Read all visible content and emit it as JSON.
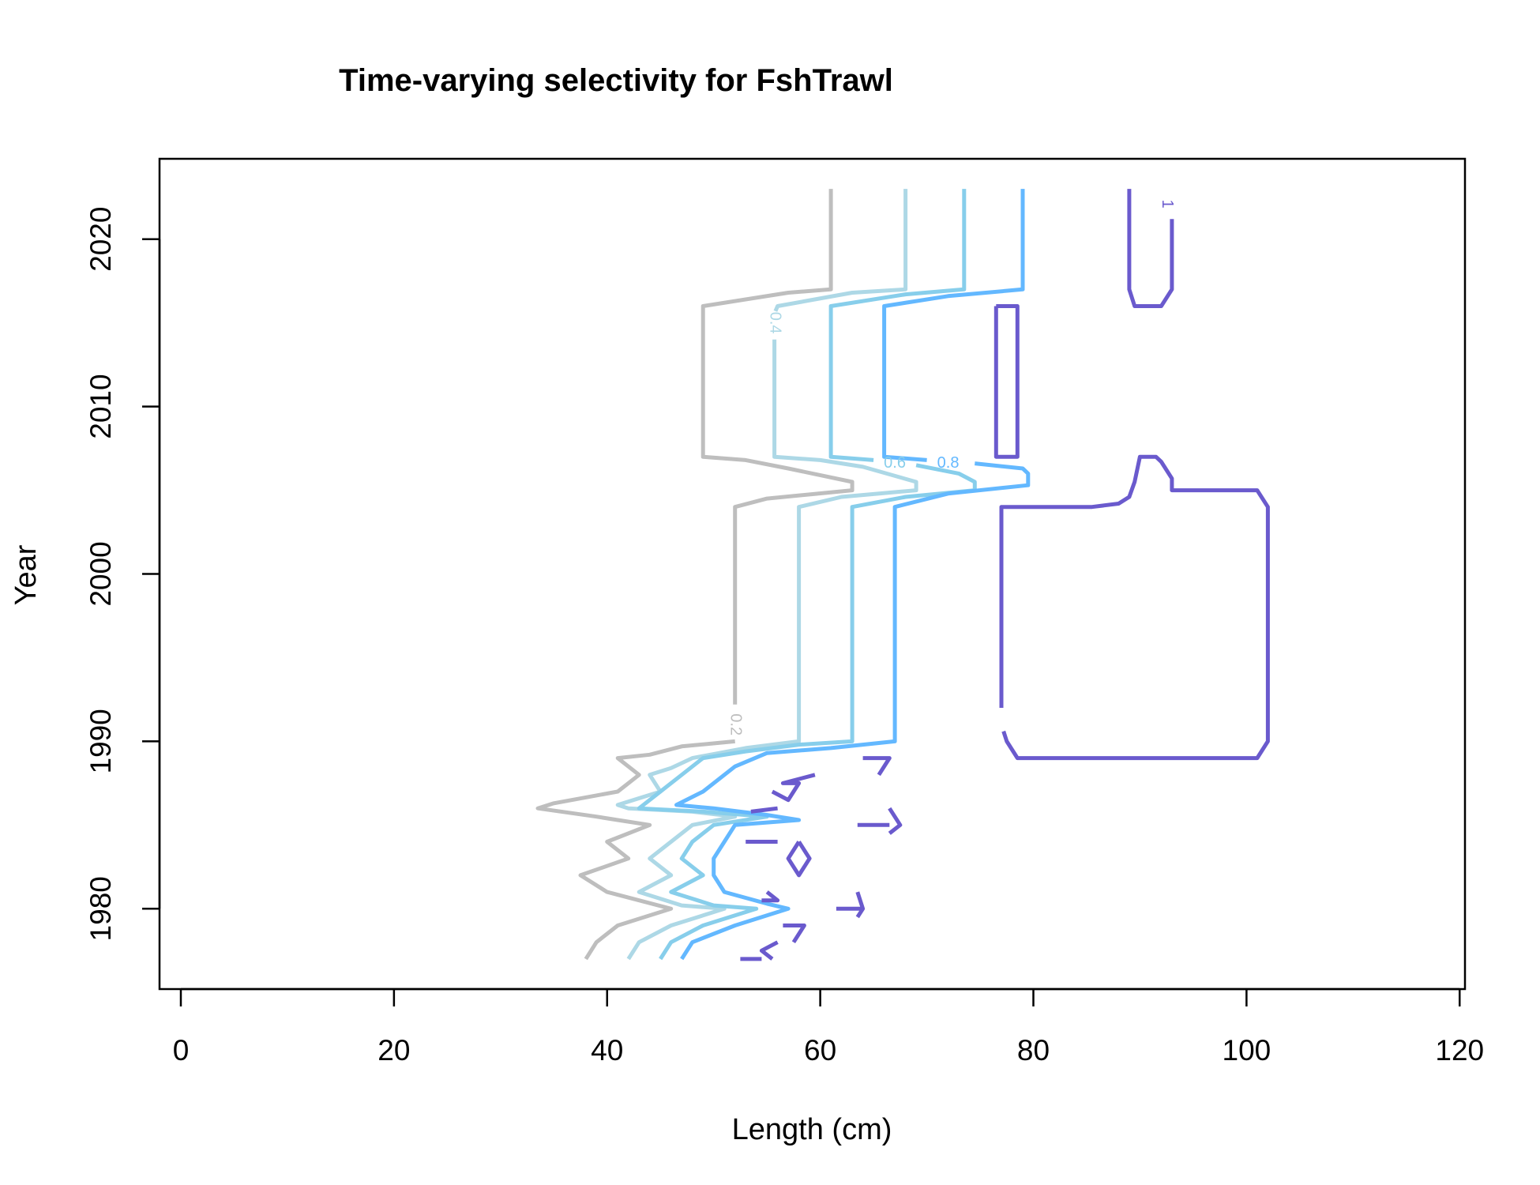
{
  "chart_data": {
    "type": "contour",
    "title": "Time-varying selectivity for FshTrawl",
    "xlabel": "Length (cm)",
    "ylabel": "Year",
    "xlim": [
      -2,
      120.5
    ],
    "ylim": [
      1975.2,
      2024.8
    ],
    "x_ticks": [
      0,
      20,
      40,
      60,
      80,
      100,
      120
    ],
    "x_tick_labels": [
      "0",
      "20",
      "40",
      "60",
      "80",
      "100",
      "120"
    ],
    "y_ticks": [
      1980,
      1990,
      2000,
      2010,
      2020
    ],
    "y_tick_labels": [
      "1980",
      "1990",
      "2000",
      "2010",
      "2020"
    ],
    "grid": false,
    "legend": "none",
    "levels": [
      {
        "level": 0.2,
        "label": "0.2",
        "color": "#BEBEBE",
        "label_pos": [
          52,
          1991
        ],
        "lines": [
          [
            [
              61,
              2023
            ],
            [
              61,
              2017
            ],
            [
              57,
              2016.8
            ],
            [
              49,
              2016
            ],
            [
              49,
              2007
            ],
            [
              53,
              2006.8
            ],
            [
              57,
              2006.3
            ],
            [
              63,
              2005.5
            ],
            [
              63,
              2005
            ],
            [
              55,
              2004.5
            ],
            [
              52,
              2004
            ],
            [
              52,
              1992.2
            ]
          ],
          [
            [
              52,
              1990
            ],
            [
              47,
              1989.7
            ],
            [
              44,
              1989.2
            ],
            [
              41,
              1989
            ],
            [
              43,
              1988
            ],
            [
              41,
              1987
            ],
            [
              35,
              1986.3
            ],
            [
              33.5,
              1986
            ],
            [
              39,
              1985.5
            ],
            [
              41,
              1985.3
            ],
            [
              44,
              1985
            ],
            [
              40,
              1984
            ],
            [
              42,
              1983
            ],
            [
              37.5,
              1982
            ],
            [
              40,
              1981
            ],
            [
              43,
              1980.5
            ],
            [
              46,
              1980
            ],
            [
              41,
              1979
            ],
            [
              39,
              1978
            ],
            [
              38,
              1977
            ]
          ]
        ]
      },
      {
        "level": 0.4,
        "label": "0.4",
        "color": "#ADD8E6",
        "label_pos": [
          55.7,
          2015
        ],
        "lines": [
          [
            [
              68,
              2023
            ],
            [
              68,
              2017
            ],
            [
              63,
              2016.8
            ],
            [
              56,
              2016
            ],
            [
              55.8,
              2015.7
            ]
          ],
          [
            [
              55.7,
              2014
            ],
            [
              55.7,
              2007
            ],
            [
              60,
              2006.8
            ],
            [
              64,
              2006.4
            ],
            [
              69,
              2005.5
            ],
            [
              69,
              2005
            ],
            [
              62,
              2004.6
            ],
            [
              58,
              2004
            ],
            [
              58,
              1990
            ],
            [
              53,
              1989.6
            ],
            [
              48,
              1989
            ],
            [
              46,
              1988.4
            ],
            [
              44,
              1988
            ],
            [
              45,
              1987
            ],
            [
              41,
              1986.2
            ],
            [
              42,
              1986
            ],
            [
              48,
              1985.8
            ],
            [
              52,
              1985.5
            ],
            [
              48,
              1985
            ],
            [
              46,
              1984
            ],
            [
              44,
              1983
            ],
            [
              46,
              1982
            ],
            [
              43,
              1981
            ],
            [
              47,
              1980.2
            ],
            [
              51,
              1980
            ],
            [
              46,
              1979
            ],
            [
              43,
              1978
            ],
            [
              42,
              1977
            ]
          ]
        ]
      },
      {
        "level": 0.6,
        "label": "0.6",
        "color": "#87CEEB",
        "label_pos": [
          67,
          2006.6
        ],
        "lines": [
          [
            [
              73.5,
              2023
            ],
            [
              73.5,
              2017
            ],
            [
              68,
              2016.7
            ],
            [
              61,
              2016
            ],
            [
              61,
              2007
            ],
            [
              65,
              2006.8
            ]
          ],
          [
            [
              69,
              2006.5
            ],
            [
              73,
              2006
            ],
            [
              74.5,
              2005.5
            ],
            [
              74.5,
              2005
            ],
            [
              68,
              2004.6
            ],
            [
              63,
              2004
            ],
            [
              63,
              1990
            ],
            [
              58,
              1989.8
            ],
            [
              53,
              1989.4
            ],
            [
              49,
              1989
            ],
            [
              47,
              1988
            ],
            [
              45,
              1987
            ],
            [
              43,
              1986
            ],
            [
              49,
              1985.8
            ],
            [
              55,
              1985.5
            ],
            [
              50,
              1985
            ],
            [
              48,
              1984
            ],
            [
              47,
              1983
            ],
            [
              49,
              1982
            ],
            [
              46,
              1981
            ],
            [
              50,
              1980.2
            ],
            [
              54,
              1980
            ],
            [
              49,
              1979
            ],
            [
              46,
              1978
            ],
            [
              45,
              1977
            ]
          ]
        ]
      },
      {
        "level": 0.8,
        "label": "0.8",
        "color": "#63B8FF",
        "label_pos": [
          72,
          2006.6
        ],
        "lines": [
          [
            [
              79,
              2023
            ],
            [
              79,
              2017
            ],
            [
              72,
              2016.6
            ],
            [
              66,
              2016
            ],
            [
              66,
              2007
            ],
            [
              70,
              2006.8
            ]
          ],
          [
            [
              74.5,
              2006.6
            ],
            [
              79,
              2006.3
            ],
            [
              79.5,
              2006
            ],
            [
              79.5,
              2005.3
            ],
            [
              72,
              2004.8
            ],
            [
              67,
              2004
            ],
            [
              67,
              1990
            ],
            [
              61,
              1989.6
            ],
            [
              55,
              1989.3
            ],
            [
              52,
              1988.5
            ],
            [
              49,
              1987
            ],
            [
              46.5,
              1986.2
            ],
            [
              50,
              1986
            ],
            [
              55,
              1985.6
            ],
            [
              58,
              1985.3
            ],
            [
              52,
              1985
            ],
            [
              51,
              1984
            ],
            [
              50,
              1983
            ],
            [
              50,
              1982
            ],
            [
              51,
              1981
            ],
            [
              55,
              1980.3
            ],
            [
              57,
              1980
            ],
            [
              52,
              1979
            ],
            [
              48,
              1978
            ],
            [
              47,
              1977
            ]
          ]
        ]
      },
      {
        "level": 1,
        "label": "1",
        "color": "#6A5ACD",
        "label_pos": [
          92.5,
          2022.1
        ],
        "lines": [
          [
            [
              89,
              2023
            ],
            [
              89,
              2017
            ],
            [
              89.5,
              2016
            ],
            [
              92,
              2016
            ],
            [
              93,
              2017
            ],
            [
              93,
              2021.2
            ]
          ],
          [
            [
              76.5,
              2016
            ],
            [
              78.5,
              2016
            ],
            [
              78.5,
              2007
            ],
            [
              76.5,
              2007
            ],
            [
              76.5,
              2016
            ]
          ],
          [
            [
              77,
              1992
            ],
            [
              77,
              2004
            ],
            [
              85.5,
              2004
            ],
            [
              88,
              2004.2
            ],
            [
              89,
              2004.6
            ],
            [
              89.5,
              2005.5
            ],
            [
              90,
              2007
            ],
            [
              91.5,
              2007
            ],
            [
              92,
              2006.7
            ],
            [
              93,
              2005.7
            ],
            [
              93,
              2005
            ],
            [
              101,
              2005
            ],
            [
              102,
              2004
            ],
            [
              102,
              1990
            ],
            [
              101,
              1989
            ],
            [
              78.5,
              1989
            ],
            [
              77.5,
              1990
            ],
            [
              77.2,
              1990.6
            ]
          ],
          [
            [
              64,
              1989
            ],
            [
              66.5,
              1989
            ],
            [
              65.5,
              1988
            ]
          ],
          [
            [
              59.5,
              1988
            ],
            [
              56.5,
              1987.5
            ],
            [
              58,
              1987.5
            ],
            [
              57,
              1986.5
            ],
            [
              55.5,
              1987
            ]
          ],
          [
            [
              56,
              1986
            ],
            [
              53.5,
              1985.8
            ]
          ],
          [
            [
              66.5,
              1986
            ],
            [
              67.5,
              1985
            ],
            [
              66.5,
              1984.5
            ]
          ],
          [
            [
              63.5,
              1985
            ],
            [
              66.5,
              1985
            ]
          ],
          [
            [
              53,
              1984
            ],
            [
              56,
              1984
            ]
          ],
          [
            [
              58,
              1984
            ],
            [
              59,
              1983
            ],
            [
              58,
              1982
            ],
            [
              57,
              1983
            ],
            [
              58,
              1984
            ]
          ],
          [
            [
              55,
              1981
            ],
            [
              56,
              1980.5
            ],
            [
              54.5,
              1980.5
            ]
          ],
          [
            [
              63.5,
              1981
            ],
            [
              64,
              1980
            ],
            [
              63.5,
              1979.5
            ]
          ],
          [
            [
              61.5,
              1980
            ],
            [
              64,
              1980
            ]
          ],
          [
            [
              56.5,
              1979
            ],
            [
              58.5,
              1979
            ],
            [
              57.5,
              1978
            ]
          ],
          [
            [
              56,
              1978
            ],
            [
              54.5,
              1977.5
            ],
            [
              55.5,
              1977
            ]
          ],
          [
            [
              52.5,
              1977
            ],
            [
              54.5,
              1977
            ]
          ]
        ]
      }
    ]
  }
}
